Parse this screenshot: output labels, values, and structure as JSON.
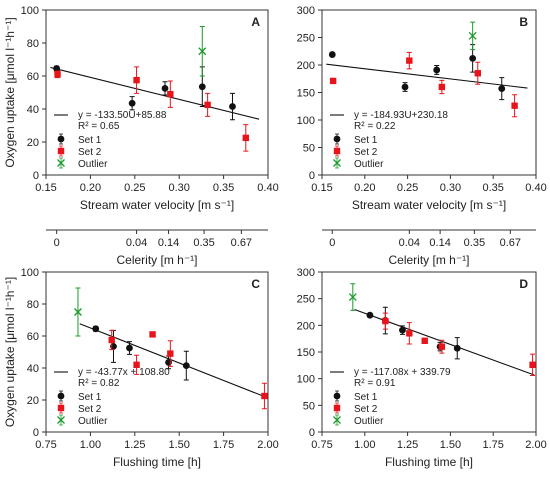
{
  "colors": {
    "set1": "#111111",
    "set2": "#e8141b",
    "outlier": "#1a9a2b",
    "fit": "#111111",
    "axis": "#333333"
  },
  "legend_labels": {
    "set1": "Set 1",
    "set2": "Set 2",
    "outlier": "Outlier"
  },
  "celerity_axis": {
    "label": "Celerity [m h⁻¹]",
    "ticks": [
      {
        "label": "0",
        "velocity": 0.162
      },
      {
        "label": "0.04",
        "velocity": 0.252
      },
      {
        "label": "0.14",
        "velocity": 0.288
      },
      {
        "label": "0.35",
        "velocity": 0.328
      },
      {
        "label": "0.67",
        "velocity": 0.37
      }
    ]
  },
  "chart_data": [
    {
      "id": "A",
      "panel_label": "A",
      "type": "scatter",
      "xlabel": "Stream water velocity [m s⁻¹]",
      "ylabel": "Oxygen uptake [μmol l⁻¹h⁻¹]",
      "xlim": [
        0.15,
        0.4
      ],
      "ylim": [
        0,
        100
      ],
      "xticks": [
        0.15,
        0.2,
        0.25,
        0.3,
        0.35,
        0.4
      ],
      "xtick_labels": [
        "0.15",
        "0.20",
        "0.25",
        "0.30",
        "0.35",
        "0.40"
      ],
      "yticks": [
        0,
        20,
        40,
        60,
        80,
        100
      ],
      "ytick_labels": [
        "0",
        "20",
        "40",
        "60",
        "80",
        "100"
      ],
      "fit": {
        "slope": -133.5,
        "intercept": 85.88,
        "x_range": [
          0.155,
          0.39
        ]
      },
      "equation": "y = -133.50U+85.88",
      "r2": "R² = 0.65",
      "series": [
        {
          "name": "Set 1",
          "marker": "circle",
          "points": [
            {
              "x": 0.162,
              "y": 64.5,
              "err": 1.5
            },
            {
              "x": 0.247,
              "y": 43.5,
              "err": 4
            },
            {
              "x": 0.284,
              "y": 52.5,
              "err": 4
            },
            {
              "x": 0.326,
              "y": 53.5,
              "err": 12
            },
            {
              "x": 0.36,
              "y": 41.5,
              "err": 8
            }
          ]
        },
        {
          "name": "Set 2",
          "marker": "square",
          "points": [
            {
              "x": 0.163,
              "y": 61,
              "err": 2
            },
            {
              "x": 0.252,
              "y": 57.5,
              "err": 8
            },
            {
              "x": 0.29,
              "y": 49,
              "err": 8
            },
            {
              "x": 0.332,
              "y": 42.5,
              "err": 7
            },
            {
              "x": 0.375,
              "y": 22.5,
              "err": 8
            }
          ]
        },
        {
          "name": "Outlier",
          "marker": "x",
          "points": [
            {
              "x": 0.326,
              "y": 75,
              "err": 15
            }
          ]
        }
      ]
    },
    {
      "id": "B",
      "panel_label": "B",
      "type": "scatter",
      "xlabel": "Stream water velocity [m s⁻¹]",
      "ylabel": "",
      "xlim": [
        0.15,
        0.4
      ],
      "ylim": [
        0,
        300
      ],
      "xticks": [
        0.15,
        0.2,
        0.25,
        0.3,
        0.35,
        0.4
      ],
      "xtick_labels": [
        "0.15",
        "0.20",
        "0.25",
        "0.30",
        "0.35",
        "0.40"
      ],
      "yticks": [
        0,
        50,
        100,
        150,
        200,
        250,
        300
      ],
      "ytick_labels": [
        "0",
        "50",
        "100",
        "150",
        "200",
        "250",
        "300"
      ],
      "fit": {
        "slope": -184.93,
        "intercept": 230.18,
        "x_range": [
          0.155,
          0.39
        ]
      },
      "equation": "y = -184.93U+230.18",
      "r2": "R² = 0.22",
      "series": [
        {
          "name": "Set 1",
          "marker": "circle",
          "points": [
            {
              "x": 0.162,
              "y": 219,
              "err": 2
            },
            {
              "x": 0.247,
              "y": 160,
              "err": 8
            },
            {
              "x": 0.284,
              "y": 191,
              "err": 8
            },
            {
              "x": 0.326,
              "y": 212,
              "err": 25
            },
            {
              "x": 0.36,
              "y": 157,
              "err": 20
            }
          ]
        },
        {
          "name": "Set 2",
          "marker": "square",
          "points": [
            {
              "x": 0.163,
              "y": 171,
              "err": 3
            },
            {
              "x": 0.252,
              "y": 208,
              "err": 15
            },
            {
              "x": 0.29,
              "y": 160,
              "err": 12
            },
            {
              "x": 0.332,
              "y": 185,
              "err": 20
            },
            {
              "x": 0.375,
              "y": 126,
              "err": 20
            }
          ]
        },
        {
          "name": "Outlier",
          "marker": "x",
          "points": [
            {
              "x": 0.326,
              "y": 253,
              "err": 25
            }
          ]
        }
      ]
    },
    {
      "id": "C",
      "panel_label": "C",
      "type": "scatter",
      "xlabel": "Flushing time [h]",
      "ylabel": "Oxygen uptake [μmol l⁻¹h⁻¹]",
      "xlim": [
        0.75,
        2.0
      ],
      "ylim": [
        0,
        100
      ],
      "xticks": [
        0.75,
        1.0,
        1.25,
        1.5,
        1.75,
        2.0
      ],
      "xtick_labels": [
        "0.75",
        "1.00",
        "1.25",
        "1.50",
        "1.75",
        "2.00"
      ],
      "yticks": [
        0,
        20,
        40,
        60,
        80,
        100
      ],
      "ytick_labels": [
        "0",
        "20",
        "40",
        "60",
        "80",
        "100"
      ],
      "fit": {
        "slope": -43.77,
        "intercept": 108.8,
        "x_range": [
          0.94,
          1.99
        ]
      },
      "equation": "y = -43.77x + 108.80",
      "r2": "R² = 0.82",
      "series": [
        {
          "name": "Set 1",
          "marker": "circle",
          "points": [
            {
              "x": 1.03,
              "y": 64.5,
              "err": 1.5
            },
            {
              "x": 1.13,
              "y": 53.5,
              "err": 10
            },
            {
              "x": 1.22,
              "y": 52.5,
              "err": 4
            },
            {
              "x": 1.44,
              "y": 43.5,
              "err": 4
            },
            {
              "x": 1.54,
              "y": 41.5,
              "err": 9
            }
          ]
        },
        {
          "name": "Set 2",
          "marker": "square",
          "points": [
            {
              "x": 1.12,
              "y": 57.5,
              "err": 6
            },
            {
              "x": 1.26,
              "y": 42,
              "err": 6
            },
            {
              "x": 1.35,
              "y": 61,
              "err": 1.5
            },
            {
              "x": 1.45,
              "y": 49,
              "err": 8
            },
            {
              "x": 1.98,
              "y": 22.5,
              "err": 8
            }
          ]
        },
        {
          "name": "Outlier",
          "marker": "x",
          "points": [
            {
              "x": 0.93,
              "y": 75,
              "err": 15
            }
          ]
        }
      ]
    },
    {
      "id": "D",
      "panel_label": "D",
      "type": "scatter",
      "xlabel": "Flushing time [h]",
      "ylabel": "",
      "xlim": [
        0.75,
        2.0
      ],
      "ylim": [
        0,
        300
      ],
      "xticks": [
        0.75,
        1.0,
        1.25,
        1.5,
        1.75,
        2.0
      ],
      "xtick_labels": [
        "0.75",
        "1.00",
        "1.25",
        "1.50",
        "1.75",
        "2.00"
      ],
      "yticks": [
        0,
        50,
        100,
        150,
        200,
        250,
        300
      ],
      "ytick_labels": [
        "0",
        "50",
        "100",
        "150",
        "200",
        "250",
        "300"
      ],
      "fit": {
        "slope": -117.08,
        "intercept": 339.79,
        "x_range": [
          0.94,
          1.99
        ]
      },
      "equation": "y = -117.08x + 339.79",
      "r2": "R² = 0.91",
      "series": [
        {
          "name": "Set 1",
          "marker": "circle",
          "points": [
            {
              "x": 1.03,
              "y": 219,
              "err": 2
            },
            {
              "x": 1.12,
              "y": 209,
              "err": 25
            },
            {
              "x": 1.22,
              "y": 191,
              "err": 8
            },
            {
              "x": 1.44,
              "y": 160,
              "err": 8
            },
            {
              "x": 1.54,
              "y": 157,
              "err": 20
            }
          ]
        },
        {
          "name": "Set 2",
          "marker": "square",
          "points": [
            {
              "x": 1.12,
              "y": 208,
              "err": 15
            },
            {
              "x": 1.26,
              "y": 185,
              "err": 20
            },
            {
              "x": 1.35,
              "y": 171,
              "err": 3
            },
            {
              "x": 1.45,
              "y": 160,
              "err": 12
            },
            {
              "x": 1.98,
              "y": 126,
              "err": 20
            }
          ]
        },
        {
          "name": "Outlier",
          "marker": "x",
          "points": [
            {
              "x": 0.93,
              "y": 253,
              "err": 25
            }
          ]
        }
      ]
    }
  ]
}
